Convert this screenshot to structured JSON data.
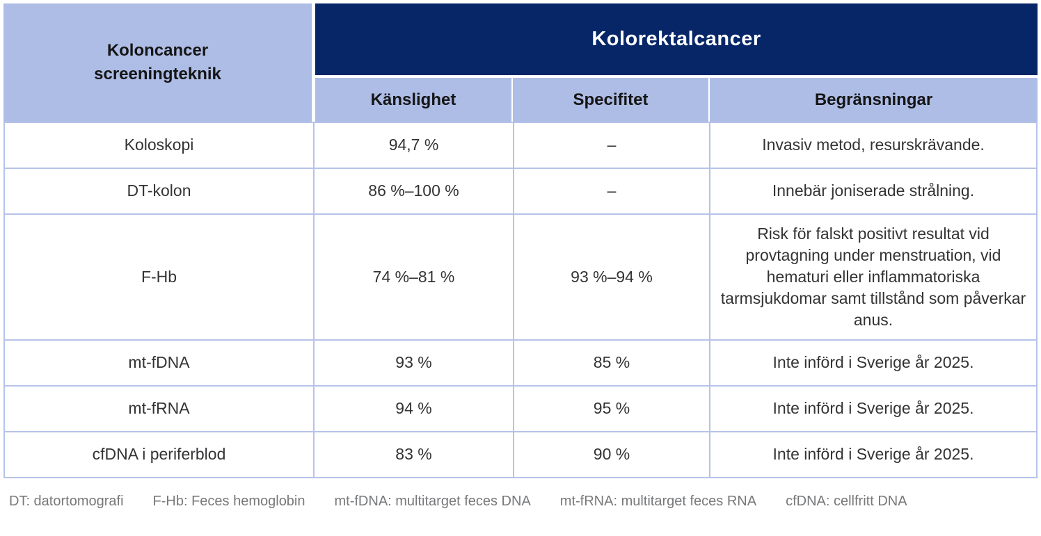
{
  "chart_data": {
    "type": "table",
    "title": "Kolorektalcancer",
    "corner_header": "Koloncancer\nscreeningteknik",
    "columns": {
      "sensitivity": "Känslighet",
      "specificity": "Specifitet",
      "limitations": "Begränsningar"
    },
    "rows": [
      {
        "technique": "Koloskopi",
        "sensitivity": "94,7 %",
        "specificity": "–",
        "limitations": "Invasiv metod, resurskrävande."
      },
      {
        "technique": "DT-kolon",
        "sensitivity": "86 %–100 %",
        "specificity": "–",
        "limitations": "Innebär joniserade strålning."
      },
      {
        "technique": "F-Hb",
        "sensitivity": "74 %–81 %",
        "specificity": "93 %–94 %",
        "limitations": "Risk för falskt positivt resultat vid provtagning under menstruation, vid hematuri eller inflammatoriska tarmsjukdomar samt tillstånd som påverkar anus."
      },
      {
        "technique": "mt-fDNA",
        "sensitivity": "93 %",
        "specificity": "85 %",
        "limitations": "Inte införd i Sverige år 2025."
      },
      {
        "technique": "mt-fRNA",
        "sensitivity": "94 %",
        "specificity": "95 %",
        "limitations": "Inte införd i Sverige år 2025."
      },
      {
        "technique": "cfDNA i periferblod",
        "sensitivity": "83 %",
        "specificity": "90 %",
        "limitations": "Inte införd i Sverige år 2025."
      }
    ],
    "footnotes": [
      "DT: datortomografi",
      "F-Hb: Feces hemoglobin",
      "mt-fDNA: multitarget feces DNA",
      "mt-fRNA: multitarget feces RNA",
      "cfDNA: cellfritt DNA"
    ],
    "colors": {
      "header_navy": "#062667",
      "header_periwinkle": "#aebde6",
      "border_light_blue": "#b6c3e9",
      "body_text": "#333335",
      "footnote_text": "#77787a"
    }
  }
}
